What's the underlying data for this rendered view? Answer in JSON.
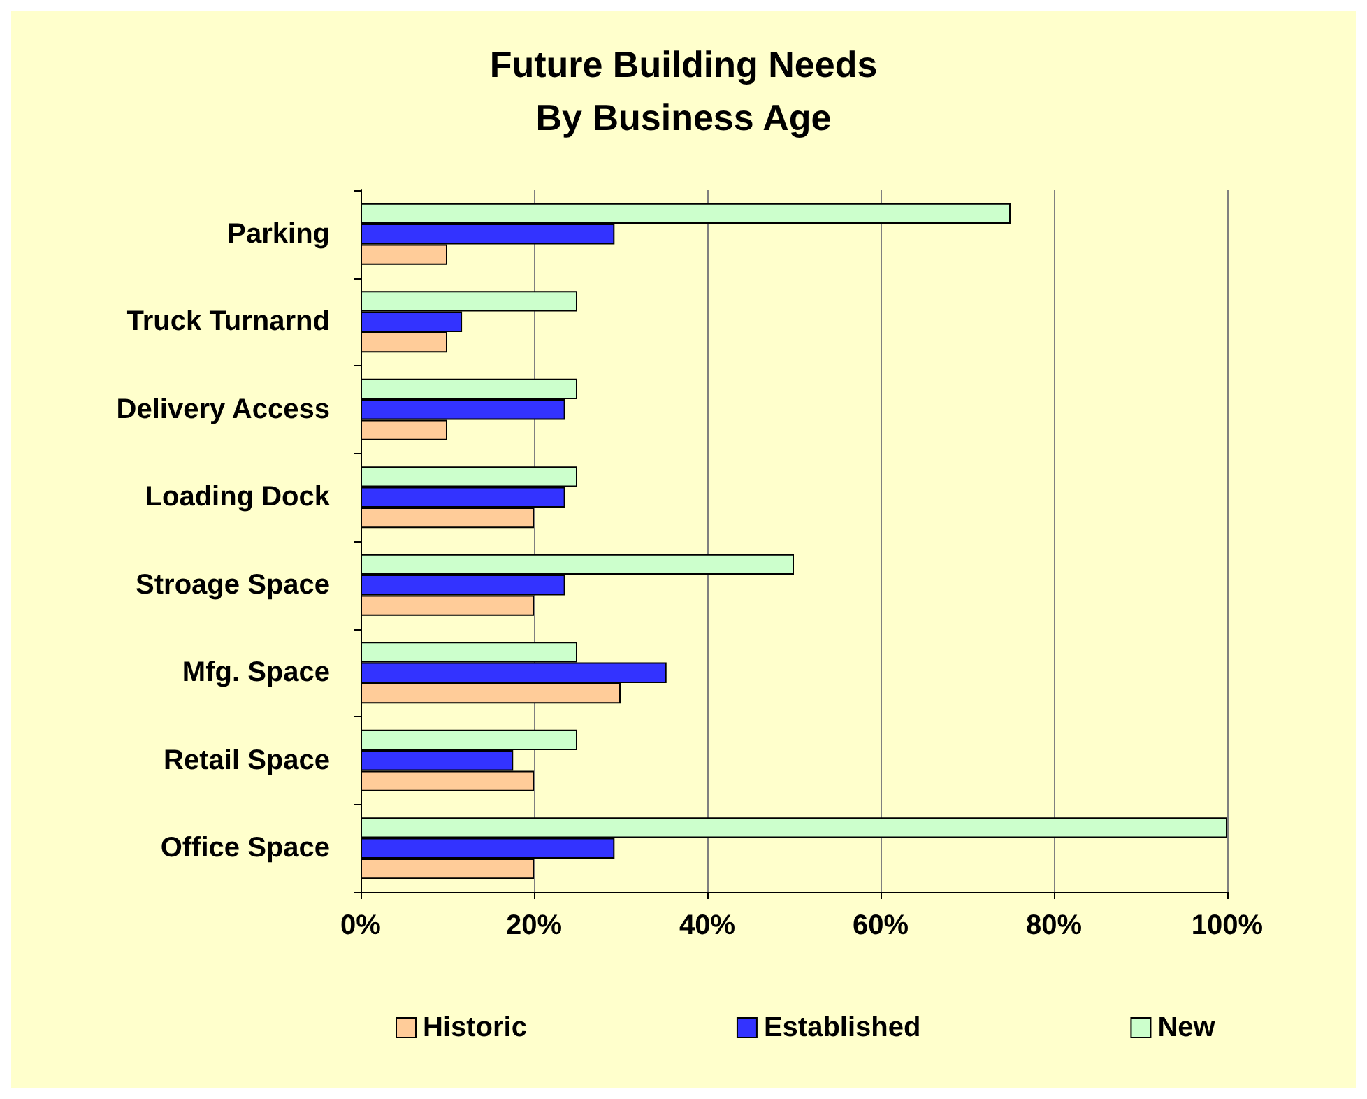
{
  "chart_data": {
    "type": "bar",
    "orientation": "horizontal",
    "title": "Future Building Needs\nBy Business Age",
    "categories": [
      "Parking",
      "Truck Turnarnd",
      "Delivery Access",
      "Loading Dock",
      "Stroage Space",
      "Mfg. Space",
      "Retail Space",
      "Office Space"
    ],
    "series": [
      {
        "name": "Historic",
        "color": "#ffcc99",
        "values": [
          10,
          10,
          10,
          20,
          20,
          30,
          20,
          20
        ]
      },
      {
        "name": "Established",
        "color": "#3333ff",
        "values": [
          29.3,
          11.7,
          23.6,
          23.6,
          23.6,
          35.3,
          17.6,
          29.3
        ]
      },
      {
        "name": "New",
        "color": "#ccffcc",
        "values": [
          75,
          25,
          25,
          25,
          50,
          25,
          25,
          100
        ]
      }
    ],
    "xlim": [
      0,
      100
    ],
    "xticks": [
      {
        "value": 0,
        "label": "0%"
      },
      {
        "value": 20,
        "label": "20%"
      },
      {
        "value": 40,
        "label": "40%"
      },
      {
        "value": 60,
        "label": "60%"
      },
      {
        "value": 80,
        "label": "80%"
      },
      {
        "value": 100,
        "label": "100%"
      }
    ],
    "grid": "x",
    "legend": "bottom"
  }
}
